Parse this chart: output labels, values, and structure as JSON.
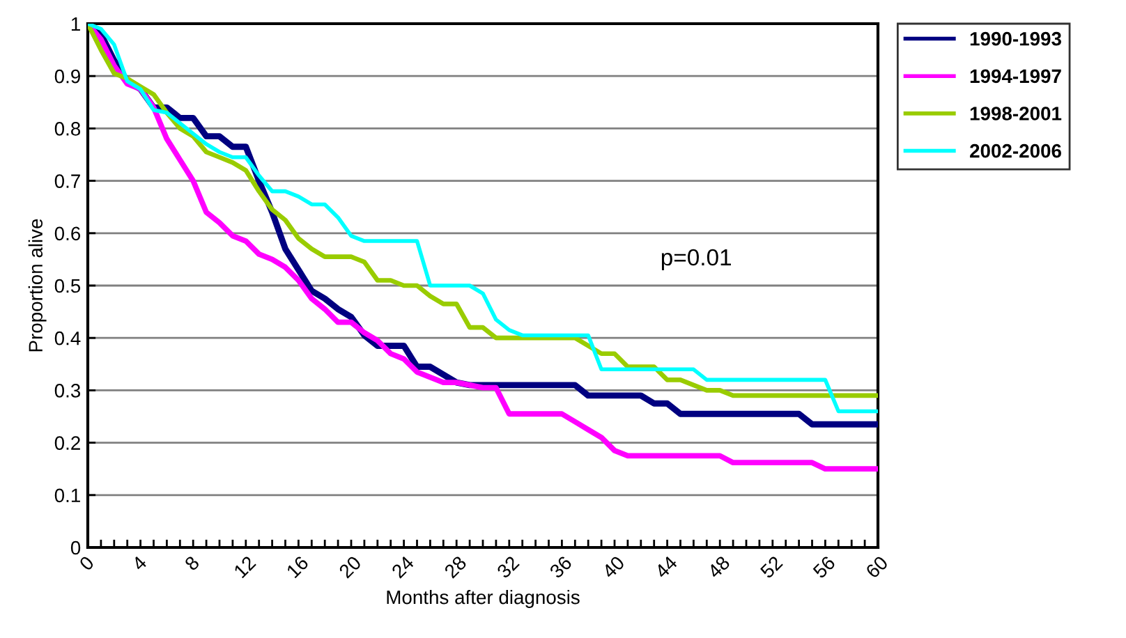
{
  "chart_data": {
    "type": "line",
    "xlabel": "Months after diagnosis",
    "ylabel": "Proportion alive",
    "x": [
      0,
      1,
      2,
      3,
      4,
      5,
      6,
      7,
      8,
      9,
      10,
      11,
      12,
      13,
      14,
      15,
      16,
      17,
      18,
      19,
      20,
      21,
      22,
      23,
      24,
      25,
      26,
      27,
      28,
      29,
      30,
      31,
      32,
      33,
      34,
      35,
      36,
      37,
      38,
      39,
      40,
      41,
      42,
      43,
      44,
      45,
      46,
      47,
      48,
      49,
      50,
      51,
      52,
      53,
      54,
      55,
      56,
      57,
      58,
      59,
      60
    ],
    "series": [
      {
        "name": "1990-1993",
        "color": "#000080",
        "values": [
          1.0,
          0.98,
          0.93,
          0.89,
          0.875,
          0.84,
          0.84,
          0.82,
          0.82,
          0.785,
          0.785,
          0.765,
          0.765,
          0.7,
          0.64,
          0.57,
          0.53,
          0.49,
          0.475,
          0.455,
          0.44,
          0.405,
          0.385,
          0.385,
          0.385,
          0.345,
          0.345,
          0.33,
          0.315,
          0.31,
          0.31,
          0.31,
          0.31,
          0.31,
          0.31,
          0.31,
          0.31,
          0.31,
          0.29,
          0.29,
          0.29,
          0.29,
          0.29,
          0.275,
          0.275,
          0.255,
          0.255,
          0.255,
          0.255,
          0.255,
          0.255,
          0.255,
          0.255,
          0.255,
          0.255,
          0.235,
          0.235,
          0.235,
          0.235,
          0.235,
          0.235
        ]
      },
      {
        "name": "1994-1997",
        "color": "#ff00ff",
        "values": [
          1.0,
          0.97,
          0.92,
          0.885,
          0.875,
          0.84,
          0.78,
          0.74,
          0.7,
          0.64,
          0.62,
          0.595,
          0.585,
          0.56,
          0.55,
          0.535,
          0.51,
          0.475,
          0.455,
          0.43,
          0.43,
          0.41,
          0.395,
          0.37,
          0.36,
          0.335,
          0.325,
          0.315,
          0.315,
          0.31,
          0.305,
          0.305,
          0.255,
          0.255,
          0.255,
          0.255,
          0.255,
          0.24,
          0.225,
          0.21,
          0.185,
          0.175,
          0.175,
          0.175,
          0.175,
          0.175,
          0.175,
          0.175,
          0.175,
          0.162,
          0.162,
          0.162,
          0.162,
          0.162,
          0.162,
          0.162,
          0.15,
          0.15,
          0.15,
          0.15,
          0.15
        ]
      },
      {
        "name": "1998-2001",
        "color": "#99cc00",
        "values": [
          1.0,
          0.95,
          0.905,
          0.895,
          0.88,
          0.865,
          0.83,
          0.8,
          0.785,
          0.755,
          0.745,
          0.735,
          0.72,
          0.68,
          0.645,
          0.625,
          0.59,
          0.57,
          0.555,
          0.555,
          0.555,
          0.545,
          0.51,
          0.51,
          0.5,
          0.5,
          0.48,
          0.465,
          0.465,
          0.42,
          0.42,
          0.4,
          0.4,
          0.4,
          0.4,
          0.4,
          0.4,
          0.4,
          0.385,
          0.37,
          0.37,
          0.345,
          0.345,
          0.345,
          0.32,
          0.32,
          0.31,
          0.3,
          0.3,
          0.29,
          0.29,
          0.29,
          0.29,
          0.29,
          0.29,
          0.29,
          0.29,
          0.29,
          0.29,
          0.29,
          0.29
        ]
      },
      {
        "name": "2002-2006",
        "color": "#00ffff",
        "values": [
          1.0,
          0.99,
          0.96,
          0.89,
          0.875,
          0.835,
          0.83,
          0.81,
          0.79,
          0.77,
          0.755,
          0.745,
          0.745,
          0.71,
          0.68,
          0.68,
          0.67,
          0.655,
          0.655,
          0.63,
          0.595,
          0.585,
          0.585,
          0.585,
          0.585,
          0.585,
          0.5,
          0.5,
          0.5,
          0.5,
          0.485,
          0.435,
          0.415,
          0.405,
          0.405,
          0.405,
          0.405,
          0.405,
          0.405,
          0.34,
          0.34,
          0.34,
          0.34,
          0.34,
          0.34,
          0.34,
          0.34,
          0.32,
          0.32,
          0.32,
          0.32,
          0.32,
          0.32,
          0.32,
          0.32,
          0.32,
          0.32,
          0.26,
          0.26,
          0.26,
          0.26
        ]
      }
    ],
    "annotations": [
      "p=0.01"
    ],
    "xlim": [
      0,
      60
    ],
    "xticks": [
      0,
      {
        "value": 1,
        "label": null
      },
      {
        "value": 2,
        "label": null
      },
      {
        "value": 3,
        "label": null
      },
      4,
      {
        "value": 5,
        "label": null
      },
      {
        "value": 6,
        "label": null
      },
      {
        "value": 7,
        "label": null
      },
      8,
      {
        "value": 9,
        "label": null
      },
      {
        "value": 10,
        "label": null
      },
      {
        "value": 11,
        "label": null
      },
      12,
      {
        "value": 13,
        "label": null
      },
      {
        "value": 14,
        "label": null
      },
      {
        "value": 15,
        "label": null
      },
      16,
      {
        "value": 17,
        "label": null
      },
      {
        "value": 18,
        "label": null
      },
      {
        "value": 19,
        "label": null
      },
      20,
      {
        "value": 21,
        "label": null
      },
      {
        "value": 22,
        "label": null
      },
      {
        "value": 23,
        "label": null
      },
      24,
      {
        "value": 25,
        "label": null
      },
      {
        "value": 26,
        "label": null
      },
      {
        "value": 27,
        "label": null
      },
      28,
      {
        "value": 29,
        "label": null
      },
      {
        "value": 30,
        "label": null
      },
      {
        "value": 31,
        "label": null
      },
      32,
      {
        "value": 33,
        "label": null
      },
      {
        "value": 34,
        "label": null
      },
      {
        "value": 35,
        "label": null
      },
      36,
      {
        "value": 37,
        "label": null
      },
      {
        "value": 38,
        "label": null
      },
      {
        "value": 39,
        "label": null
      },
      40,
      {
        "value": 41,
        "label": null
      },
      {
        "value": 42,
        "label": null
      },
      {
        "value": 43,
        "label": null
      },
      44,
      {
        "value": 45,
        "label": null
      },
      {
        "value": 46,
        "label": null
      },
      {
        "value": 47,
        "label": null
      },
      48,
      {
        "value": 49,
        "label": null
      },
      {
        "value": 50,
        "label": null
      },
      {
        "value": 51,
        "label": null
      },
      52,
      {
        "value": 53,
        "label": null
      },
      {
        "value": 54,
        "label": null
      },
      {
        "value": 55,
        "label": null
      },
      56,
      {
        "value": 57,
        "label": null
      },
      {
        "value": 58,
        "label": null
      },
      {
        "value": 59,
        "label": null
      },
      60
    ],
    "ylim": [
      0,
      1
    ],
    "yticks": [
      0,
      0.1,
      0.2,
      0.3,
      0.4,
      0.5,
      0.6,
      0.7,
      0.8,
      0.9,
      1
    ],
    "grid": "y",
    "legend": "top right",
    "marker": "none",
    "line_style": "solid"
  }
}
